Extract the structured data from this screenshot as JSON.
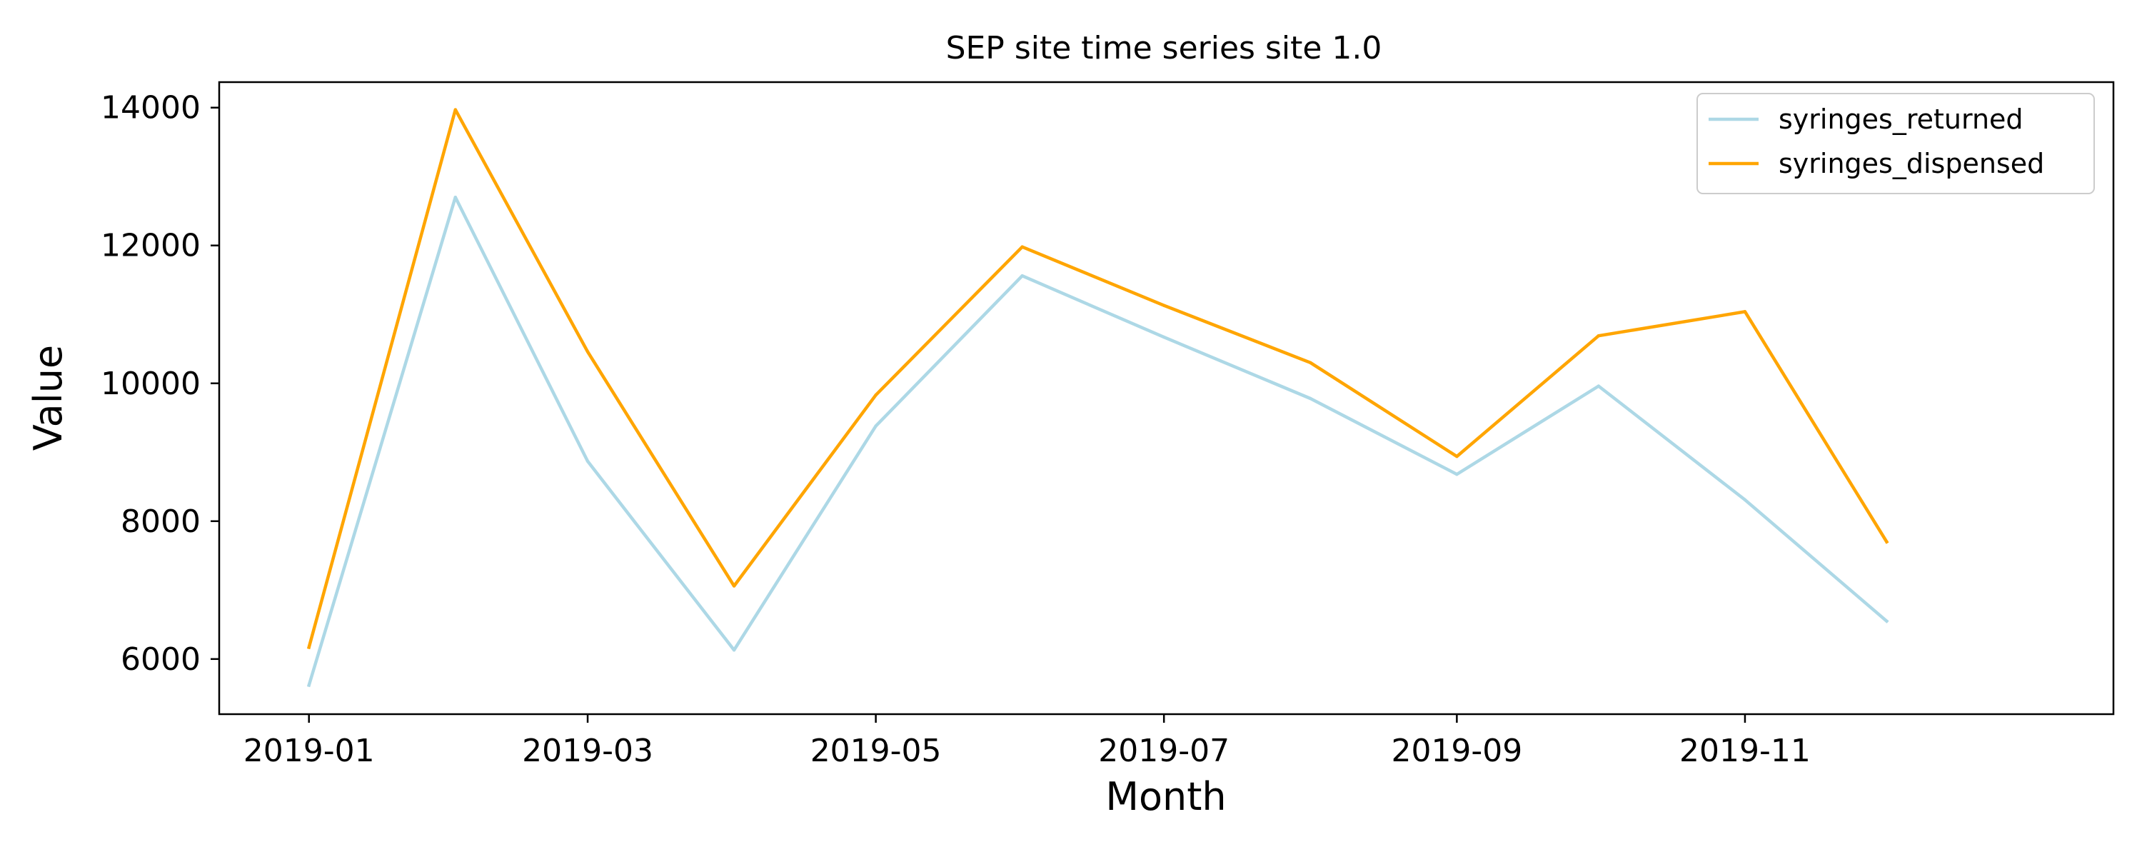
{
  "chart_data": {
    "type": "line",
    "title": "SEP site time series site 1.0",
    "xlabel": "Month",
    "ylabel": "Value",
    "x": [
      "2019-01",
      "2019-02",
      "2019-03",
      "2019-04",
      "2019-05",
      "2019-06",
      "2019-07",
      "2019-08",
      "2019-09",
      "2019-10",
      "2019-11",
      "2019-12"
    ],
    "xlim": [
      "2018-12-13",
      "2020-01-18"
    ],
    "ylim": [
      5200,
      14370
    ],
    "xticks": [
      "2019-01",
      "2019-03",
      "2019-05",
      "2019-07",
      "2019-09",
      "2019-11"
    ],
    "yticks": [
      6000,
      8000,
      10000,
      12000,
      14000
    ],
    "grid": false,
    "legend_position": "top-right",
    "series": [
      {
        "name": "syringes_returned",
        "color": "#add8e6",
        "values": [
          5620,
          12700,
          8870,
          6130,
          9380,
          11560,
          10670,
          9780,
          8680,
          9960,
          8310,
          6550
        ]
      },
      {
        "name": "syringes_dispensed",
        "color": "#ffa500",
        "values": [
          6170,
          13970,
          10460,
          7060,
          9830,
          11980,
          11130,
          10300,
          8940,
          10690,
          11040,
          7700
        ]
      }
    ]
  }
}
